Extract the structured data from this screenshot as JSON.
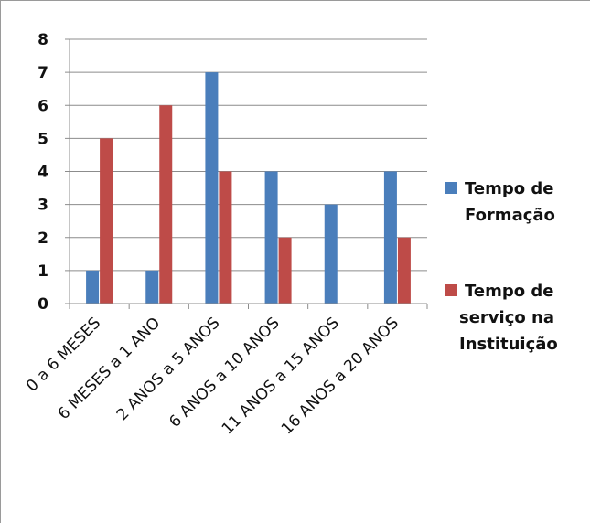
{
  "chart_data": {
    "type": "bar",
    "title": "",
    "xlabel": "",
    "ylabel": "",
    "ylim": [
      0,
      8
    ],
    "yticks": [
      "0",
      "1",
      "2",
      "3",
      "4",
      "5",
      "6",
      "7",
      "8"
    ],
    "grid": true,
    "legend_position": "right",
    "categories": [
      "0 a 6 MESES",
      "6 MESES a 1 ANO",
      "2 ANOS a 5 ANOS",
      "6 ANOS a 10 ANOS",
      "11 ANOS a 15 ANOS",
      "16 ANOS a 20 ANOS"
    ],
    "series": [
      {
        "name": "Tempo de Formação",
        "legend_lines": [
          "Tempo de",
          "Formação"
        ],
        "color": "#4a7ebb",
        "values": [
          1,
          1,
          7,
          4,
          3,
          4
        ]
      },
      {
        "name": "Tempo de serviço na Instituição",
        "legend_lines": [
          "Tempo de",
          "serviço na",
          "Instituição"
        ],
        "color": "#be4b48",
        "values": [
          5,
          6,
          4,
          2,
          0,
          2
        ]
      }
    ]
  }
}
